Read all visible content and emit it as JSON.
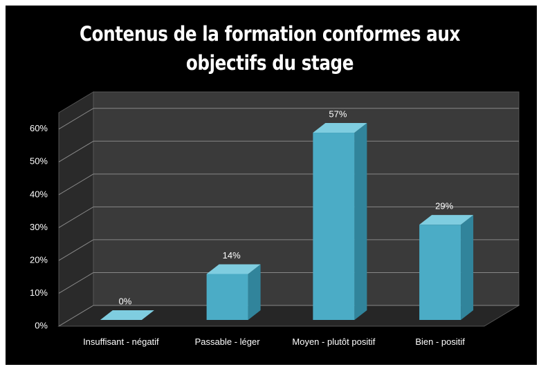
{
  "chart_data": {
    "type": "bar",
    "title": "Contenus de la formation conformes aux objectifs du stage",
    "categories": [
      "Insuffisant - négatif",
      "Passable - léger",
      "Moyen - plutôt positif",
      "Bien - positif"
    ],
    "values": [
      0,
      14,
      57,
      29
    ],
    "value_labels": [
      "0%",
      "14%",
      "57%",
      "29%"
    ],
    "color": "#4bacc6",
    "ylim": [
      0,
      65
    ],
    "yticks": [
      {
        "value": 0,
        "label": "0%"
      },
      {
        "value": 10,
        "label": "10%"
      },
      {
        "value": 20,
        "label": "20%"
      },
      {
        "value": 30,
        "label": "30%"
      },
      {
        "value": 40,
        "label": "40%"
      },
      {
        "value": 50,
        "label": "50%"
      },
      {
        "value": 60,
        "label": "60%"
      }
    ],
    "grid": true
  }
}
